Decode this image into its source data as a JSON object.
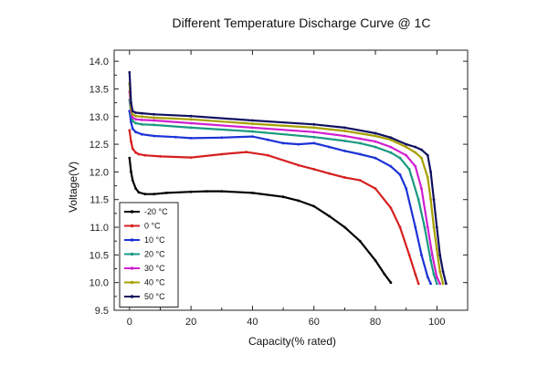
{
  "chart_data": {
    "type": "line",
    "title": "Different Temperature Discharge Curve @ 1C",
    "xlabel": "Capacity(% rated)",
    "ylabel": "Voltage(V)",
    "xlim": [
      -5,
      110
    ],
    "ylim": [
      9.5,
      14.2
    ],
    "xticks": [
      0,
      20,
      40,
      60,
      80,
      100
    ],
    "yticks": [
      9.5,
      10.0,
      10.5,
      11.0,
      11.5,
      12.0,
      12.5,
      13.0,
      13.5,
      14.0
    ],
    "ytick_labels": [
      "9.5",
      "10.0",
      "10.5",
      "11.0",
      "11.5",
      "12.0",
      "12.5",
      "13.0",
      "13.5",
      "14.0"
    ],
    "legend_position": "bottom-left",
    "series": [
      {
        "name": "-20 °C",
        "color": "#000000",
        "x": [
          0,
          0.5,
          1,
          2,
          3,
          5,
          8,
          12,
          20,
          25,
          30,
          40,
          50,
          55,
          60,
          65,
          70,
          75,
          80,
          83,
          85
        ],
        "y": [
          12.25,
          12.0,
          11.85,
          11.7,
          11.63,
          11.6,
          11.6,
          11.62,
          11.64,
          11.65,
          11.65,
          11.62,
          11.55,
          11.48,
          11.38,
          11.2,
          11.0,
          10.75,
          10.4,
          10.15,
          10.0
        ]
      },
      {
        "name": "0 °C",
        "color": "#d62020",
        "x": [
          0,
          0.5,
          1,
          2,
          3,
          5,
          10,
          20,
          30,
          38,
          45,
          55,
          60,
          65,
          70,
          75,
          80,
          85,
          88,
          91,
          93,
          94
        ],
        "y": [
          12.75,
          12.55,
          12.42,
          12.35,
          12.32,
          12.3,
          12.28,
          12.26,
          12.32,
          12.36,
          12.3,
          12.12,
          12.05,
          11.97,
          11.9,
          11.85,
          11.7,
          11.35,
          11.0,
          10.5,
          10.15,
          9.98
        ]
      },
      {
        "name": "10 °C",
        "color": "#1c33d6",
        "x": [
          0,
          0.5,
          1,
          2,
          4,
          8,
          15,
          20,
          30,
          40,
          45,
          50,
          55,
          60,
          65,
          70,
          75,
          80,
          85,
          88,
          90,
          93,
          95,
          97,
          98
        ],
        "y": [
          13.1,
          12.9,
          12.78,
          12.72,
          12.68,
          12.65,
          12.63,
          12.61,
          12.62,
          12.64,
          12.58,
          12.52,
          12.5,
          12.52,
          12.45,
          12.38,
          12.32,
          12.25,
          12.1,
          11.95,
          11.7,
          11.0,
          10.5,
          10.1,
          9.98
        ]
      },
      {
        "name": "20 °C",
        "color": "#1a9a80",
        "x": [
          0,
          0.5,
          1,
          2,
          4,
          8,
          20,
          40,
          60,
          70,
          75,
          80,
          85,
          88,
          91,
          94,
          96,
          98,
          99,
          100
        ],
        "y": [
          13.3,
          13.05,
          12.92,
          12.88,
          12.86,
          12.85,
          12.8,
          12.73,
          12.63,
          12.56,
          12.52,
          12.45,
          12.35,
          12.25,
          12.05,
          11.5,
          11.0,
          10.4,
          10.15,
          9.98
        ]
      },
      {
        "name": "30 °C",
        "color": "#d020d0",
        "x": [
          0,
          0.5,
          1,
          2,
          4,
          8,
          20,
          40,
          60,
          70,
          75,
          80,
          85,
          90,
          93,
          95,
          97,
          98.5,
          100,
          101
        ],
        "y": [
          13.45,
          13.1,
          12.98,
          12.95,
          12.94,
          12.93,
          12.88,
          12.8,
          12.72,
          12.65,
          12.6,
          12.55,
          12.45,
          12.3,
          12.1,
          11.7,
          11.0,
          10.5,
          10.1,
          9.98
        ]
      },
      {
        "name": "40 °C",
        "color": "#a8a000",
        "x": [
          0,
          0.5,
          1,
          2,
          4,
          8,
          20,
          40,
          60,
          70,
          80,
          85,
          90,
          93,
          95,
          97,
          98,
          99,
          100,
          101,
          102
        ],
        "y": [
          13.6,
          13.15,
          13.04,
          13.01,
          13.0,
          12.98,
          12.95,
          12.87,
          12.8,
          12.74,
          12.65,
          12.58,
          12.45,
          12.35,
          12.25,
          11.9,
          11.5,
          11.0,
          10.6,
          10.2,
          9.98
        ]
      },
      {
        "name": "50 °C",
        "color": "#101060",
        "x": [
          0,
          0.5,
          1,
          2,
          4,
          8,
          20,
          40,
          60,
          70,
          80,
          85,
          90,
          93,
          95,
          97,
          98,
          99,
          100,
          101,
          102,
          103
        ],
        "y": [
          13.8,
          13.25,
          13.1,
          13.07,
          13.06,
          13.04,
          13.01,
          12.93,
          12.86,
          12.8,
          12.7,
          12.62,
          12.5,
          12.45,
          12.4,
          12.3,
          12.0,
          11.5,
          11.0,
          10.5,
          10.2,
          9.98
        ]
      }
    ]
  }
}
